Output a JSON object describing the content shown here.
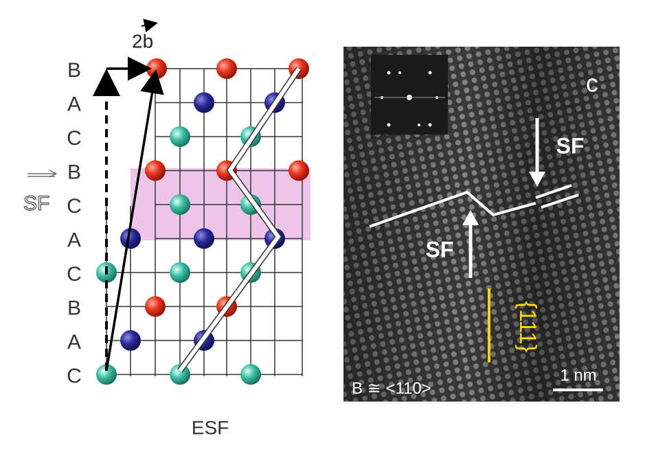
{
  "left": {
    "vector_label": "2b",
    "stacking": [
      "B",
      "A",
      "C",
      "B",
      "C",
      "A",
      "C",
      "B",
      "A",
      "C"
    ],
    "sf_label": "SF",
    "caption": "ESF"
  },
  "right": {
    "panel_label": "c",
    "sf_labels": [
      "SF",
      "SF"
    ],
    "plane": "{111}",
    "zone_axis": "B ≅ <110>",
    "scale_bar": "1 nm"
  }
}
